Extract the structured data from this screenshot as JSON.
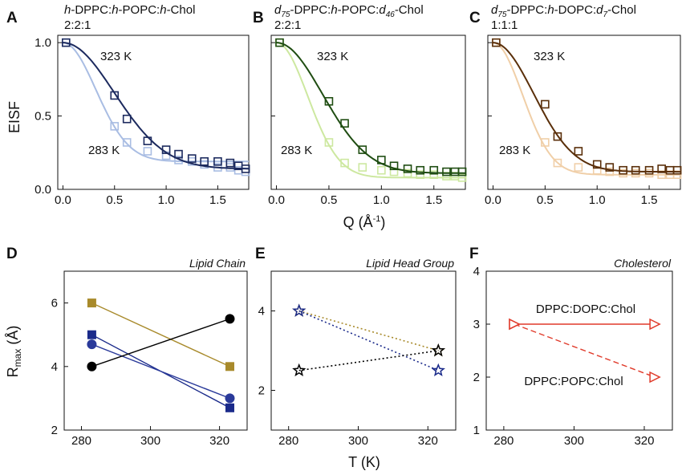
{
  "chart_data": [
    {
      "panel": "A",
      "type": "scatter",
      "title": [
        "h-DPPC:h-POPC:h-Chol",
        "2:2:1"
      ],
      "ylabel": "EISF",
      "xlim": [
        -0.05,
        1.8
      ],
      "ylim": [
        0.0,
        1.05
      ],
      "xticks": [
        "0.0",
        "0.5",
        "1.0",
        "1.5"
      ],
      "yticks": [
        "0.0",
        "0.5",
        "1.0"
      ],
      "annotations": [
        "323 K",
        "283 K"
      ],
      "series": [
        {
          "temperature": "323 K",
          "color": "#1c2a5e",
          "x": [
            0.03,
            0.5,
            0.62,
            0.82,
            1.0,
            1.12,
            1.25,
            1.37,
            1.5,
            1.62,
            1.7,
            1.77
          ],
          "y": [
            1.0,
            0.64,
            0.48,
            0.33,
            0.27,
            0.24,
            0.21,
            0.19,
            0.19,
            0.18,
            0.16,
            0.14
          ],
          "fit": {
            "form": "A + (1-A)*exp(-(x/s)^2)",
            "A": 0.14,
            "s": 0.7
          }
        },
        {
          "temperature": "283 K",
          "color": "#a9bde3",
          "x": [
            0.03,
            0.5,
            0.62,
            0.82,
            1.0,
            1.12,
            1.25,
            1.37,
            1.5,
            1.62,
            1.7,
            1.77
          ],
          "y": [
            1.0,
            0.43,
            0.32,
            0.26,
            0.23,
            0.2,
            0.19,
            0.17,
            0.15,
            0.15,
            0.13,
            0.12
          ],
          "fit": {
            "form": "A + (1-A)*exp(-(x/s)^2)",
            "A": 0.19,
            "s": 0.45
          }
        }
      ]
    },
    {
      "panel": "B",
      "type": "scatter",
      "title": [
        "d75-DPPC:h-POPC:d46-Chol",
        "2:2:1"
      ],
      "xlim": [
        -0.05,
        1.8
      ],
      "ylim": [
        0.0,
        1.05
      ],
      "xticks": [
        "0.0",
        "0.5",
        "1.0",
        "1.5"
      ],
      "yticks": [],
      "annotations": [
        "323 K",
        "283 K"
      ],
      "series": [
        {
          "temperature": "323 K",
          "color": "#1f4d12",
          "x": [
            0.03,
            0.5,
            0.65,
            0.82,
            1.0,
            1.12,
            1.25,
            1.37,
            1.5,
            1.62,
            1.7,
            1.77
          ],
          "y": [
            1.0,
            0.6,
            0.45,
            0.27,
            0.2,
            0.16,
            0.14,
            0.13,
            0.13,
            0.12,
            0.12,
            0.12
          ],
          "fit": {
            "form": "A + (1-A)*exp(-(x/s)^2)",
            "A": 0.11,
            "s": 0.62
          }
        },
        {
          "temperature": "283 K",
          "color": "#cde8a0",
          "x": [
            0.03,
            0.5,
            0.65,
            0.82,
            1.0,
            1.12,
            1.25,
            1.37,
            1.5,
            1.62,
            1.7,
            1.77
          ],
          "y": [
            1.0,
            0.32,
            0.18,
            0.15,
            0.13,
            0.12,
            0.11,
            0.1,
            0.1,
            0.09,
            0.09,
            0.08
          ],
          "fit": {
            "form": "A + (1-A)*exp(-(x/s)^2)",
            "A": 0.08,
            "s": 0.42
          }
        }
      ]
    },
    {
      "panel": "C",
      "type": "scatter",
      "title": [
        "d75-DPPC:h-DOPC:d7-Chol",
        "1:1:1"
      ],
      "xlim": [
        -0.05,
        1.8
      ],
      "ylim": [
        0.0,
        1.05
      ],
      "xticks": [
        "0.0",
        "0.5",
        "1.0",
        "1.5"
      ],
      "yticks": [],
      "annotations": [
        "323 K",
        "283 K"
      ],
      "series": [
        {
          "temperature": "323 K",
          "color": "#5a2f0a",
          "x": [
            0.03,
            0.5,
            0.62,
            0.82,
            1.0,
            1.12,
            1.25,
            1.37,
            1.5,
            1.62,
            1.7,
            1.77
          ],
          "y": [
            1.0,
            0.58,
            0.36,
            0.26,
            0.17,
            0.15,
            0.13,
            0.13,
            0.13,
            0.14,
            0.13,
            0.13
          ],
          "fit": {
            "form": "A + (1-A)*exp(-(x/s)^2)",
            "A": 0.12,
            "s": 0.55
          }
        },
        {
          "temperature": "283 K",
          "color": "#f0cfa8",
          "x": [
            0.03,
            0.5,
            0.62,
            0.82,
            1.0,
            1.12,
            1.25,
            1.37,
            1.5,
            1.62,
            1.7,
            1.77
          ],
          "y": [
            1.0,
            0.32,
            0.18,
            0.15,
            0.13,
            0.12,
            0.11,
            0.11,
            0.11,
            0.1,
            0.1,
            0.1
          ],
          "fit": {
            "form": "A + (1-A)*exp(-(x/s)^2)",
            "A": 0.1,
            "s": 0.4
          }
        }
      ]
    },
    {
      "panel": "D",
      "type": "line",
      "category": "Lipid Chain",
      "ylabel_main": "R",
      "ylabel_sub": "max",
      "ylabel_unit": " (Å)",
      "xlim": [
        275,
        328
      ],
      "ylim": [
        2,
        7
      ],
      "xticks": [
        "280",
        "300",
        "320"
      ],
      "yticks": [
        "2",
        "4",
        "6"
      ],
      "series": [
        {
          "color": "#a88a2b",
          "marker": "square",
          "x": [
            283,
            323
          ],
          "y": [
            6.0,
            4.0
          ]
        },
        {
          "color": "#1a2a8a",
          "marker": "square",
          "x": [
            283,
            323
          ],
          "y": [
            5.0,
            2.7
          ]
        },
        {
          "color": "#2a3a9a",
          "marker": "circle",
          "x": [
            283,
            323
          ],
          "y": [
            4.7,
            3.0
          ]
        },
        {
          "color": "#000000",
          "marker": "circle",
          "x": [
            283,
            323
          ],
          "y": [
            4.0,
            5.5
          ]
        }
      ]
    },
    {
      "panel": "E",
      "type": "line",
      "category": "Lipid Head Group",
      "xlim": [
        275,
        328
      ],
      "ylim": [
        1,
        5
      ],
      "xticks": [
        "280",
        "300",
        "320"
      ],
      "yticks": [
        "2",
        "4"
      ],
      "series": [
        {
          "color": "#a88a2b",
          "marker": "star",
          "dash": "dotted",
          "x": [
            283,
            323
          ],
          "y": [
            4.0,
            3.0
          ]
        },
        {
          "color": "#1a2a8a",
          "marker": "star",
          "dash": "dotted",
          "x": [
            283,
            323
          ],
          "y": [
            4.0,
            2.5
          ]
        },
        {
          "color": "#000000",
          "marker": "star",
          "dash": "dotted",
          "x": [
            283,
            323
          ],
          "y": [
            2.5,
            3.0
          ]
        }
      ]
    },
    {
      "panel": "F",
      "type": "line",
      "category": "Cholesterol",
      "xlim": [
        275,
        328
      ],
      "ylim": [
        1,
        4
      ],
      "xticks": [
        "280",
        "300",
        "320"
      ],
      "yticks": [
        "1",
        "2",
        "3",
        "4"
      ],
      "series_labels": [
        "DPPC:DOPC:Chol",
        "DPPC:POPC:Chol"
      ],
      "series": [
        {
          "name": "DPPC:DOPC:Chol",
          "color": "#e03a2a",
          "marker": "triangle",
          "dash": "solid",
          "x": [
            283,
            323
          ],
          "y": [
            3.0,
            3.0
          ]
        },
        {
          "name": "DPPC:POPC:Chol",
          "color": "#e03a2a",
          "marker": "triangle",
          "dash": "dashed",
          "x": [
            283,
            323
          ],
          "y": [
            3.0,
            2.0
          ]
        }
      ]
    }
  ],
  "shared_xlabel_top": "Q (Å",
  "shared_xlabel_top_sup": "-1",
  "shared_xlabel_top_close": ")",
  "shared_xlabel_bottom": "T (K)"
}
